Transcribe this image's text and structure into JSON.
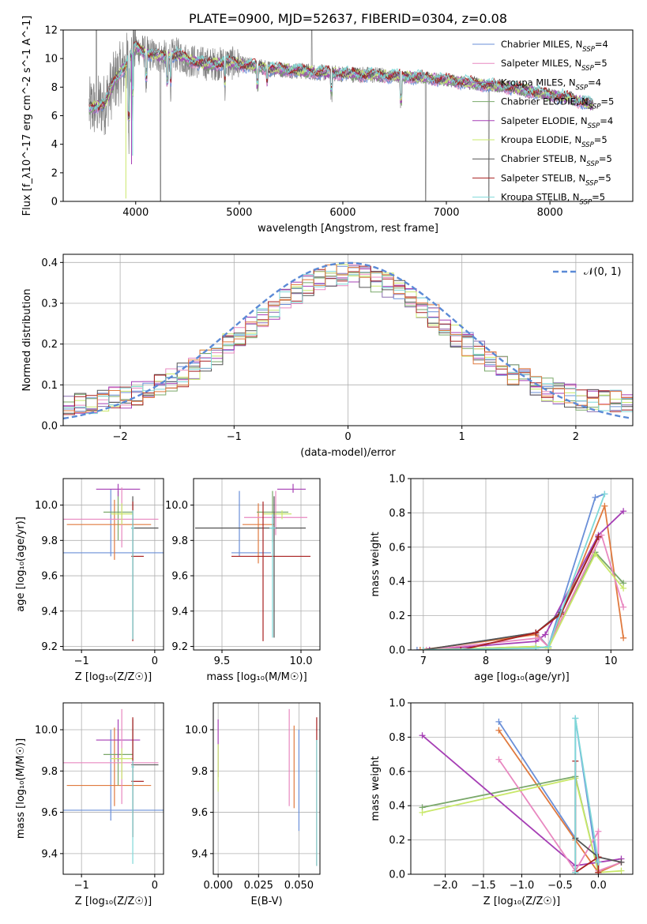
{
  "colors": {
    "Chabrier MILES": "#6a8fd8",
    "Salpeter MILES": "#e07a3f",
    "Kroupa MILES": "#7aa86a",
    "Chabrier ELODIE": "#8a6db0",
    "Salpeter ELODIE": "#a63fb5",
    "Kroupa ELODIE": "#c9e86a",
    "Chabrier STELIB": "#555555",
    "Salpeter STELIB": "#a82020",
    "Kroupa STELIB": "#7fd8d8",
    "Pink": "#e888c0"
  },
  "chart_data": [
    {
      "id": "spectrum",
      "type": "line",
      "title": "PLATE=0900, MJD=52637, FIBERID=0304, z=0.08",
      "xlabel": "wavelength [Angstrom, rest frame]",
      "ylabel": "Flux [f_λ10^-17 erg cm^-2 s^-1 A^-1]",
      "xlim": [
        3300,
        8800
      ],
      "ylim": [
        0,
        12
      ],
      "xticks": [
        "4000",
        "5000",
        "6000",
        "7000",
        "8000"
      ],
      "yticks": [
        "0",
        "2",
        "4",
        "6",
        "8",
        "10",
        "12"
      ],
      "grid": false,
      "legend_placement": "upper-right",
      "legend": [
        {
          "label": "Chabrier MILES, N",
          "sub": "SSP",
          "tail": "=4",
          "color": "#6a8fd8"
        },
        {
          "label": "Salpeter MILES, N",
          "sub": "SSP",
          "tail": "=5",
          "color": "#e888c0"
        },
        {
          "label": "Kroupa MILES, N",
          "sub": "SSP",
          "tail": "=4",
          "color": "#8a6db0"
        },
        {
          "label": "Chabrier ELODIE, N",
          "sub": "SSP",
          "tail": "=5",
          "color": "#7aa86a"
        },
        {
          "label": "Salpeter ELODIE, N",
          "sub": "SSP",
          "tail": "=4",
          "color": "#a63fb5"
        },
        {
          "label": "Kroupa ELODIE, N",
          "sub": "SSP",
          "tail": "=5",
          "color": "#c9e86a"
        },
        {
          "label": "Chabrier STELIB, N",
          "sub": "SSP",
          "tail": "=5",
          "color": "#555555"
        },
        {
          "label": "Salpeter STELIB, N",
          "sub": "SSP",
          "tail": "=5",
          "color": "#a82020"
        },
        {
          "label": "Kroupa STELIB, N",
          "sub": "SSP",
          "tail": "=5",
          "color": "#7fd8d8"
        }
      ],
      "continuum": {
        "x": [
          3550,
          3700,
          3800,
          3900,
          4000,
          4100,
          4200,
          4300,
          4400,
          4500,
          4700,
          4900,
          5100,
          5300,
          5500,
          5800,
          6100,
          6400,
          6700,
          7000,
          7300,
          7600,
          7900,
          8200,
          8400
        ],
        "y": [
          6.5,
          6.8,
          8.5,
          9.5,
          10.8,
          10.4,
          10.2,
          10.1,
          10.3,
          9.9,
          9.6,
          9.7,
          9.5,
          9.3,
          9.2,
          9.0,
          8.9,
          8.8,
          8.7,
          8.5,
          8.2,
          8.0,
          7.6,
          7.2,
          6.8
        ]
      }
    },
    {
      "id": "residuals",
      "type": "line",
      "xlabel": "(data-model)/error",
      "ylabel": "Normed distribution",
      "xlim": [
        -2.5,
        2.5
      ],
      "ylim": [
        0,
        0.42
      ],
      "xticks": [
        "−2",
        "−1",
        "0",
        "1",
        "2"
      ],
      "yticks": [
        "0.0",
        "0.1",
        "0.2",
        "0.3",
        "0.4"
      ],
      "grid": true,
      "legend_placement": "upper-right",
      "legend": [
        {
          "label": "𝒩(0, 1)",
          "color": "#5b8ad6"
        }
      ],
      "gaussian": {
        "mu": 0,
        "sigma": 1,
        "color": "#5b8ad6"
      }
    },
    {
      "id": "z-age",
      "type": "scatter",
      "xlabel": "Z [log₁₀(Z/Z☉)]",
      "ylabel": "age  [log₁₀(age/yr)]",
      "xlim": [
        -1.25,
        0.12
      ],
      "ylim": [
        9.18,
        10.15
      ],
      "xticks": [
        "−1",
        "0"
      ],
      "yticks": [
        "9.2",
        "9.4",
        "9.6",
        "9.8",
        "10.0"
      ],
      "grid": true,
      "points": [
        {
          "x": -0.6,
          "y": 9.73,
          "xerr": [
            0.65,
            0.8
          ],
          "yerr": [
            0.02,
            0.36
          ],
          "color": "#6a8fd8"
        },
        {
          "x": -0.55,
          "y": 9.89,
          "xerr": [
            0.65,
            0.5
          ],
          "yerr": [
            0.2,
            0.14
          ],
          "color": "#e07a3f"
        },
        {
          "x": -0.5,
          "y": 9.96,
          "xerr": [
            0.2,
            0.2
          ],
          "yerr": [
            0.16,
            0.12
          ],
          "color": "#7aa86a"
        },
        {
          "x": -0.5,
          "y": 10.09,
          "xerr": [
            0.3,
            0.3
          ],
          "yerr": [
            0.04,
            0.03
          ],
          "color": "#a63fb5"
        },
        {
          "x": -0.45,
          "y": 9.92,
          "xerr": [
            0.8,
            0.5
          ],
          "yerr": [
            0.16,
            0.18
          ],
          "color": "#e888c0"
        },
        {
          "x": -0.45,
          "y": 9.95,
          "xerr": [
            0.15,
            0.15
          ],
          "yerr": [
            0.06,
            0.06
          ],
          "color": "#c9e86a"
        },
        {
          "x": -0.3,
          "y": 9.87,
          "xerr": [
            0.02,
            0.35
          ],
          "yerr": [
            0.63,
            0.18
          ],
          "color": "#555555"
        },
        {
          "x": -0.3,
          "y": 9.71,
          "xerr": [
            0.02,
            0.15
          ],
          "yerr": [
            0.48,
            0.31
          ],
          "color": "#a82020"
        },
        {
          "x": -0.3,
          "y": 9.87,
          "xerr": [
            0.02,
            0.02
          ],
          "yerr": [
            0.63,
            0.1
          ],
          "color": "#7fd8d8"
        }
      ]
    },
    {
      "id": "mass-age",
      "type": "scatter",
      "xlabel": "mass [log₁₀(M/M☉)]",
      "ylabel": "",
      "xlim": [
        9.32,
        10.12
      ],
      "ylim": [
        9.18,
        10.15
      ],
      "xticks": [
        "9.5",
        "10.0"
      ],
      "yticks": [
        "9.2",
        "9.4",
        "9.6",
        "9.8",
        "10.0"
      ],
      "grid": true,
      "points": [
        {
          "x": 9.61,
          "y": 9.73,
          "xerr": [
            0.05,
            0.2
          ],
          "yerr": [
            0.02,
            0.35
          ],
          "color": "#6a8fd8"
        },
        {
          "x": 9.73,
          "y": 9.89,
          "xerr": [
            0.1,
            0.1
          ],
          "yerr": [
            0.22,
            0.12
          ],
          "color": "#e07a3f"
        },
        {
          "x": 9.82,
          "y": 9.96,
          "xerr": [
            0.1,
            0.1
          ],
          "yerr": [
            0.17,
            0.12
          ],
          "color": "#7aa86a"
        },
        {
          "x": 9.95,
          "y": 10.09,
          "xerr": [
            0.1,
            0.08
          ],
          "yerr": [
            0.02,
            0.03
          ],
          "color": "#a63fb5"
        },
        {
          "x": 9.84,
          "y": 9.93,
          "xerr": [
            0.2,
            0.2
          ],
          "yerr": [
            0.1,
            0.15
          ],
          "color": "#e888c0"
        },
        {
          "x": 9.88,
          "y": 9.95,
          "xerr": [
            0.12,
            0.06
          ],
          "yerr": [
            0.03,
            0.02
          ],
          "color": "#c9e86a"
        },
        {
          "x": 9.83,
          "y": 9.87,
          "xerr": [
            0.5,
            0.2
          ],
          "yerr": [
            0.62,
            0.18
          ],
          "color": "#555555"
        },
        {
          "x": 9.76,
          "y": 9.71,
          "xerr": [
            0.2,
            0.3
          ],
          "yerr": [
            0.48,
            0.31
          ],
          "color": "#a82020"
        },
        {
          "x": 9.82,
          "y": 9.87,
          "xerr": [
            0.02,
            0.02
          ],
          "yerr": [
            0.62,
            0.08
          ],
          "color": "#7fd8d8"
        }
      ]
    },
    {
      "id": "weights-age",
      "type": "line",
      "xlabel": "age  [log₁₀(age/yr)]",
      "ylabel": "mass weight",
      "xlim": [
        6.8,
        10.35
      ],
      "ylim": [
        0,
        1.0
      ],
      "xticks": [
        "7",
        "8",
        "9",
        "10"
      ],
      "yticks": [
        "0.0",
        "0.2",
        "0.4",
        "0.6",
        "0.8",
        "1.0"
      ],
      "grid": true,
      "series": [
        {
          "color": "#6a8fd8",
          "x": [
            6.9,
            7.0,
            8.8,
            9.0,
            9.75,
            9.9
          ],
          "y": [
            0.0,
            0.0,
            0.1,
            0.02,
            0.89,
            0.91
          ]
        },
        {
          "color": "#e07a3f",
          "x": [
            6.95,
            8.8,
            9.0,
            9.9,
            10.2
          ],
          "y": [
            0.0,
            0.09,
            0.02,
            0.84,
            0.07
          ]
        },
        {
          "color": "#7aa86a",
          "x": [
            7.0,
            8.8,
            9.0,
            9.75,
            10.2
          ],
          "y": [
            0.0,
            0.02,
            0.01,
            0.57,
            0.39
          ]
        },
        {
          "color": "#a63fb5",
          "x": [
            7.1,
            8.8,
            8.95,
            9.8,
            10.2
          ],
          "y": [
            0.0,
            0.05,
            0.09,
            0.67,
            0.81
          ]
        },
        {
          "color": "#e888c0",
          "x": [
            7.05,
            8.85,
            9.0,
            9.85,
            10.2
          ],
          "y": [
            0.0,
            0.07,
            0.02,
            0.67,
            0.25
          ]
        },
        {
          "color": "#c9e86a",
          "x": [
            7.0,
            8.8,
            9.0,
            9.75,
            10.2
          ],
          "y": [
            0.0,
            0.02,
            0.01,
            0.56,
            0.36
          ]
        },
        {
          "color": "#555555",
          "x": [
            7.0,
            8.8,
            9.2,
            9.8
          ],
          "y": [
            0.0,
            0.1,
            0.22,
            0.66
          ]
        },
        {
          "color": "#a82020",
          "x": [
            7.6,
            8.8,
            9.2,
            9.8
          ],
          "y": [
            0.0,
            0.1,
            0.21,
            0.66
          ]
        },
        {
          "color": "#7fd8d8",
          "x": [
            7.0,
            8.8,
            9.0,
            9.9
          ],
          "y": [
            0.0,
            0.01,
            0.02,
            0.91
          ]
        }
      ]
    },
    {
      "id": "z-mass",
      "type": "scatter",
      "xlabel": "Z [log₁₀(Z/Z☉)]",
      "ylabel": "mass [log₁₀(M/M☉)]",
      "xlim": [
        -1.25,
        0.12
      ],
      "ylim": [
        9.3,
        10.13
      ],
      "xticks": [
        "−1",
        "0"
      ],
      "yticks": [
        "9.4",
        "9.6",
        "9.8",
        "10.0"
      ],
      "grid": true,
      "points": [
        {
          "x": -0.6,
          "y": 9.61,
          "xerr": [
            0.65,
            0.8
          ],
          "yerr": [
            0.05,
            0.39
          ],
          "color": "#6a8fd8"
        },
        {
          "x": -0.55,
          "y": 9.73,
          "xerr": [
            0.65,
            0.5
          ],
          "yerr": [
            0.1,
            0.28
          ],
          "color": "#e07a3f"
        },
        {
          "x": -0.5,
          "y": 9.88,
          "xerr": [
            0.2,
            0.2
          ],
          "yerr": [
            0.15,
            0.12
          ],
          "color": "#7aa86a"
        },
        {
          "x": -0.5,
          "y": 9.95,
          "xerr": [
            0.3,
            0.3
          ],
          "yerr": [
            0.1,
            0.1
          ],
          "color": "#a63fb5"
        },
        {
          "x": -0.45,
          "y": 9.84,
          "xerr": [
            0.8,
            0.5
          ],
          "yerr": [
            0.2,
            0.26
          ],
          "color": "#e888c0"
        },
        {
          "x": -0.45,
          "y": 9.86,
          "xerr": [
            0.15,
            0.15
          ],
          "yerr": [
            0.1,
            0.05
          ],
          "color": "#c9e86a"
        },
        {
          "x": -0.3,
          "y": 9.83,
          "xerr": [
            0.02,
            0.35
          ],
          "yerr": [
            0.35,
            0.22
          ],
          "color": "#555555"
        },
        {
          "x": -0.3,
          "y": 9.75,
          "xerr": [
            0.02,
            0.15
          ],
          "yerr": [
            0.27,
            0.31
          ],
          "color": "#a82020"
        },
        {
          "x": -0.3,
          "y": 9.82,
          "xerr": [
            0.02,
            0.02
          ],
          "yerr": [
            0.47,
            0.03
          ],
          "color": "#7fd8d8"
        }
      ]
    },
    {
      "id": "ebv-mass",
      "type": "scatter",
      "xlabel": "E(B-V)",
      "ylabel": "",
      "xlim": [
        -0.003,
        0.063
      ],
      "ylim": [
        9.3,
        10.13
      ],
      "xticks": [
        "0.000",
        "0.025",
        "0.050"
      ],
      "yticks": [
        "9.4",
        "9.6",
        "9.8",
        "10.0"
      ],
      "grid": true,
      "points": [
        {
          "x": 0.0,
          "y": 9.87,
          "xerr": [
            0,
            0
          ],
          "yerr": [
            0.1,
            0.18
          ],
          "color": "#a63fb5"
        },
        {
          "x": 0.0,
          "y": 9.83,
          "xerr": [
            0,
            0
          ],
          "yerr": [
            0.13,
            0.1
          ],
          "color": "#c9e86a"
        },
        {
          "x": 0.044,
          "y": 9.85,
          "xerr": [
            0,
            0
          ],
          "yerr": [
            0.22,
            0.25
          ],
          "color": "#e888c0"
        },
        {
          "x": 0.047,
          "y": 9.83,
          "xerr": [
            0,
            0
          ],
          "yerr": [
            0.21,
            0.19
          ],
          "color": "#e07a3f"
        },
        {
          "x": 0.05,
          "y": 9.75,
          "xerr": [
            0,
            0
          ],
          "yerr": [
            0.24,
            0.25
          ],
          "color": "#6a8fd8"
        },
        {
          "x": 0.061,
          "y": 9.73,
          "xerr": [
            0,
            0
          ],
          "yerr": [
            0.39,
            0.33
          ],
          "color": "#a82020"
        },
        {
          "x": 0.061,
          "y": 9.65,
          "xerr": [
            0,
            0
          ],
          "yerr": [
            0.31,
            0.3
          ],
          "color": "#7fd8d8"
        }
      ]
    },
    {
      "id": "weights-z",
      "type": "line",
      "xlabel": "Z [log₁₀(Z/Z☉)]",
      "ylabel": "mass weight",
      "xlim": [
        -2.45,
        0.45
      ],
      "ylim": [
        0,
        1.0
      ],
      "xticks": [
        "−2.0",
        "−1.5",
        "−1.0",
        "−0.5",
        "0.0"
      ],
      "yticks": [
        "0.0",
        "0.2",
        "0.4",
        "0.6",
        "0.8",
        "1.0"
      ],
      "grid": true,
      "series": [
        {
          "color": "#6a8fd8",
          "x": [
            -1.3,
            -0.3,
            -0.3,
            0.0
          ],
          "y": [
            0.89,
            0.21,
            0.91,
            0.01
          ]
        },
        {
          "color": "#e07a3f",
          "x": [
            -1.3,
            -0.3,
            0.0,
            0.3
          ],
          "y": [
            0.84,
            0.2,
            0.01,
            0.07
          ]
        },
        {
          "color": "#7aa86a",
          "x": [
            -2.3,
            -0.3,
            0.0
          ],
          "y": [
            0.39,
            0.57,
            0.01
          ]
        },
        {
          "color": "#a63fb5",
          "x": [
            -2.3,
            -0.3,
            0.3
          ],
          "y": [
            0.81,
            0.05,
            0.09
          ]
        },
        {
          "color": "#e888c0",
          "x": [
            -1.3,
            -0.3,
            0.0,
            0.0,
            0.3
          ],
          "y": [
            0.67,
            0.02,
            0.25,
            0.02,
            0.07
          ]
        },
        {
          "color": "#c9e86a",
          "x": [
            -2.3,
            -0.3,
            0.0,
            0.3
          ],
          "y": [
            0.36,
            0.56,
            0.01,
            0.02
          ]
        },
        {
          "color": "#555555",
          "x": [
            -0.3,
            0.0,
            0.3
          ],
          "y": [
            0.21,
            0.1,
            0.07
          ]
        },
        {
          "color": "#a82020",
          "x": [
            -0.3,
            -0.3,
            0.0,
            0.0
          ],
          "y": [
            0.66,
            0.01,
            0.1,
            0.01
          ]
        },
        {
          "color": "#7fd8d8",
          "x": [
            -0.3,
            -0.3,
            0.0
          ],
          "y": [
            0.01,
            0.91,
            0.07
          ]
        }
      ]
    }
  ]
}
